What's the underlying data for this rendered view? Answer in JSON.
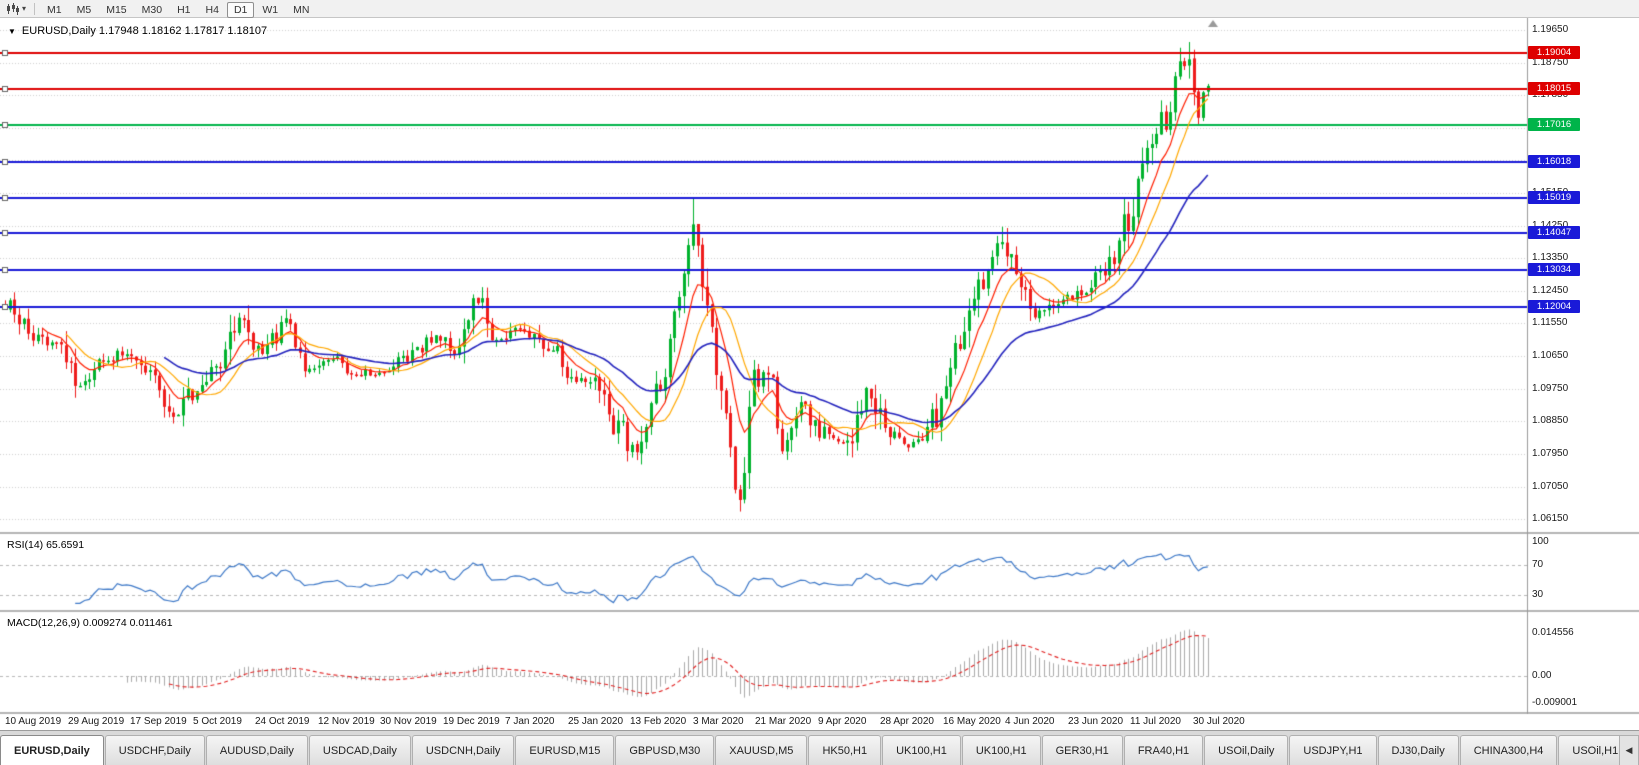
{
  "toolbar": {
    "chart_type_icon": "candlestick-chart",
    "dropdown_icon": "▾",
    "periods": [
      "M1",
      "M5",
      "M15",
      "M30",
      "H1",
      "H4",
      "D1",
      "W1",
      "MN"
    ],
    "active_period": "D1"
  },
  "chart": {
    "collapse_icon": "▼",
    "title": "EURUSD,Daily 1.17948 1.18162 1.17817 1.18107"
  },
  "chart_data": {
    "type": "candlestick",
    "symbol": "EURUSD",
    "period": "Daily",
    "bars": 258,
    "current_ohlc": {
      "open": 1.17948,
      "high": 1.18162,
      "low": 1.17817,
      "close": 1.18107
    },
    "y_axis_values": [
      1.1965,
      1.1875,
      1.1785,
      1.1695,
      1.1605,
      1.1515,
      1.1425,
      1.1335,
      1.1245,
      1.1155,
      1.1065,
      1.0975,
      1.0885,
      1.0795,
      1.0705,
      1.0615
    ],
    "x_axis_labels": [
      "10 Aug 2019",
      "29 Aug 2019",
      "17 Sep 2019",
      "5 Oct 2019",
      "24 Oct 2019",
      "12 Nov 2019",
      "30 Nov 2019",
      "19 Dec 2019",
      "7 Jan 2020",
      "25 Jan 2020",
      "13 Feb 2020",
      "3 Mar 2020",
      "21 Mar 2020",
      "9 Apr 2020",
      "28 Apr 2020",
      "16 May 2020",
      "4 Jun 2020",
      "23 Jun 2020",
      "11 Jul 2020",
      "30 Jul 2020"
    ],
    "price_levels": [
      {
        "value": 1.19004,
        "color": "#DE0000"
      },
      {
        "value": 1.18015,
        "color": "#DE0000"
      },
      {
        "value": 1.17016,
        "color": "#00B44A"
      },
      {
        "value": 1.16018,
        "color": "#1A1AD8"
      },
      {
        "value": 1.15019,
        "color": "#1A1AD8"
      },
      {
        "value": 1.14047,
        "color": "#1A1AD8"
      },
      {
        "value": 1.13034,
        "color": "#1A1AD8"
      },
      {
        "value": 1.12004,
        "color": "#1A1AD8"
      }
    ],
    "price_path": [
      [
        0,
        1.1205
      ],
      [
        4,
        1.115
      ],
      [
        8,
        1.1108
      ],
      [
        12,
        1.1092
      ],
      [
        16,
        1.0998
      ],
      [
        20,
        1.104
      ],
      [
        26,
        1.1072
      ],
      [
        31,
        1.1015
      ],
      [
        36,
        1.0908
      ],
      [
        40,
        1.0962
      ],
      [
        46,
        1.104
      ],
      [
        50,
        1.1168
      ],
      [
        55,
        1.1078
      ],
      [
        60,
        1.1158
      ],
      [
        64,
        1.1022
      ],
      [
        70,
        1.1056
      ],
      [
        76,
        1.1016
      ],
      [
        82,
        1.1032
      ],
      [
        88,
        1.1082
      ],
      [
        92,
        1.1118
      ],
      [
        96,
        1.1076
      ],
      [
        101,
        1.121
      ],
      [
        106,
        1.1106
      ],
      [
        110,
        1.1148
      ],
      [
        116,
        1.1092
      ],
      [
        121,
        1.1006
      ],
      [
        126,
        1.0992
      ],
      [
        131,
        1.0872
      ],
      [
        135,
        1.0792
      ],
      [
        140,
        1.1012
      ],
      [
        144,
        1.1242
      ],
      [
        147,
        1.1438
      ],
      [
        150,
        1.1182
      ],
      [
        153,
        1.0992
      ],
      [
        156,
        1.0706
      ],
      [
        157,
        1.0685
      ],
      [
        160,
        1.0992
      ],
      [
        163,
        1.1022
      ],
      [
        166,
        1.0812
      ],
      [
        170,
        1.0922
      ],
      [
        175,
        1.0852
      ],
      [
        180,
        1.0826
      ],
      [
        184,
        1.0976
      ],
      [
        189,
        1.0846
      ],
      [
        194,
        1.0818
      ],
      [
        199,
        1.0896
      ],
      [
        204,
        1.1092
      ],
      [
        209,
        1.1282
      ],
      [
        213,
        1.1368
      ],
      [
        217,
        1.1256
      ],
      [
        220,
        1.1182
      ],
      [
        225,
        1.1216
      ],
      [
        230,
        1.1246
      ],
      [
        235,
        1.1298
      ],
      [
        240,
        1.1428
      ],
      [
        244,
        1.1602
      ],
      [
        248,
        1.1722
      ],
      [
        251,
        1.1845
      ],
      [
        253,
        1.1872
      ],
      [
        255,
        1.1748
      ],
      [
        256,
        1.1792
      ],
      [
        257,
        1.18107
      ]
    ],
    "spikes": [
      {
        "i": 36,
        "low": 1.0879
      },
      {
        "i": 135,
        "low": 1.0778
      },
      {
        "i": 147,
        "high": 1.15
      },
      {
        "i": 157,
        "low": 1.0636
      },
      {
        "i": 213,
        "high": 1.1422
      },
      {
        "i": 251,
        "high": 1.1916
      },
      {
        "i": 255,
        "low": 1.1702
      }
    ],
    "candle_colors": {
      "up": "#00B22D",
      "down": "#EE1C1C"
    },
    "moving_averages": [
      {
        "name": "ma-fast",
        "method": "ema",
        "period": 8,
        "color": "#FF1E00",
        "width": 1.2
      },
      {
        "name": "ma-medium",
        "method": "sma",
        "period": 13,
        "color": "#FFA800",
        "width": 1.2
      },
      {
        "name": "ma-slow",
        "method": "ema",
        "period": 34,
        "color": "#2424BE",
        "width": 1.6
      }
    ],
    "rsi": {
      "label_full": "RSI(14) 65.6591",
      "current": 65.6591,
      "color": "#3E79C8",
      "levels": [
        70,
        30
      ],
      "axis_values": [
        100,
        70,
        30
      ],
      "axis_labels": [
        "100",
        "70",
        "30"
      ]
    },
    "macd": {
      "label_full": "MACD(12,26,9) 0.009274 0.011461",
      "current_macd": 0.009274,
      "current_signal": 0.011461,
      "hist_color": "#ABABAB",
      "signal_color": "#E22222",
      "axis_values": [
        0.014556,
        0,
        -0.009001
      ],
      "axis_labels": [
        "0.014556",
        "0.00",
        "-0.009001"
      ]
    }
  },
  "tabs": {
    "active_index": 0,
    "scroll_icon": "◀",
    "items": [
      "EURUSD,Daily",
      "USDCHF,Daily",
      "AUDUSD,Daily",
      "USDCAD,Daily",
      "USDCNH,Daily",
      "EURUSD,M15",
      "GBPUSD,M30",
      "XAUUSD,M5",
      "HK50,H1",
      "UK100,H1",
      "UK100,H1",
      "GER30,H1",
      "FRA40,H1",
      "USOil,Daily",
      "USDJPY,H1",
      "DJ30,Daily",
      "CHINA300,H4",
      "USOil,H1"
    ]
  }
}
